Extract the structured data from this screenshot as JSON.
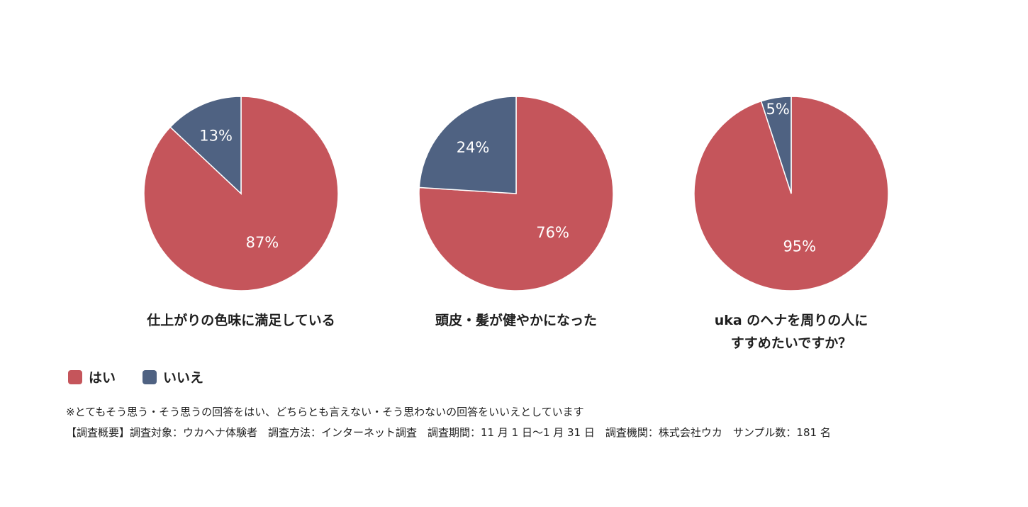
{
  "chart_data": [
    {
      "type": "pie",
      "title": "仕上がりの色味に満足している",
      "slices": [
        {
          "label": "はい",
          "value": 87,
          "display": "87%"
        },
        {
          "label": "いいえ",
          "value": 13,
          "display": "13%"
        }
      ]
    },
    {
      "type": "pie",
      "title": "頭皮・髪が健やかになった",
      "slices": [
        {
          "label": "はい",
          "value": 76,
          "display": "76%"
        },
        {
          "label": "いいえ",
          "value": 24,
          "display": "24%"
        }
      ]
    },
    {
      "type": "pie",
      "title": "uka のヘナを周りの人に\nすすめたいですか？",
      "slices": [
        {
          "label": "はい",
          "value": 95,
          "display": "95%"
        },
        {
          "label": "いいえ",
          "value": 5,
          "display": "5%"
        }
      ]
    }
  ],
  "legend": [
    {
      "label": "はい",
      "color": "#c5555b"
    },
    {
      "label": "いいえ",
      "color": "#4f6282"
    }
  ],
  "notes": {
    "line1": "※とてもそう思う・そう思うの回答をはい、どちらとも言えない・そう思わないの回答をいいえとしています",
    "line2": "【調査概要】調査対象：ウカヘナ体験者　調査方法：インターネット調査　調査期間：11 月 1 日〜1 月 31 日　調査機関：株式会社ウカ　サンプル数：181 名"
  }
}
